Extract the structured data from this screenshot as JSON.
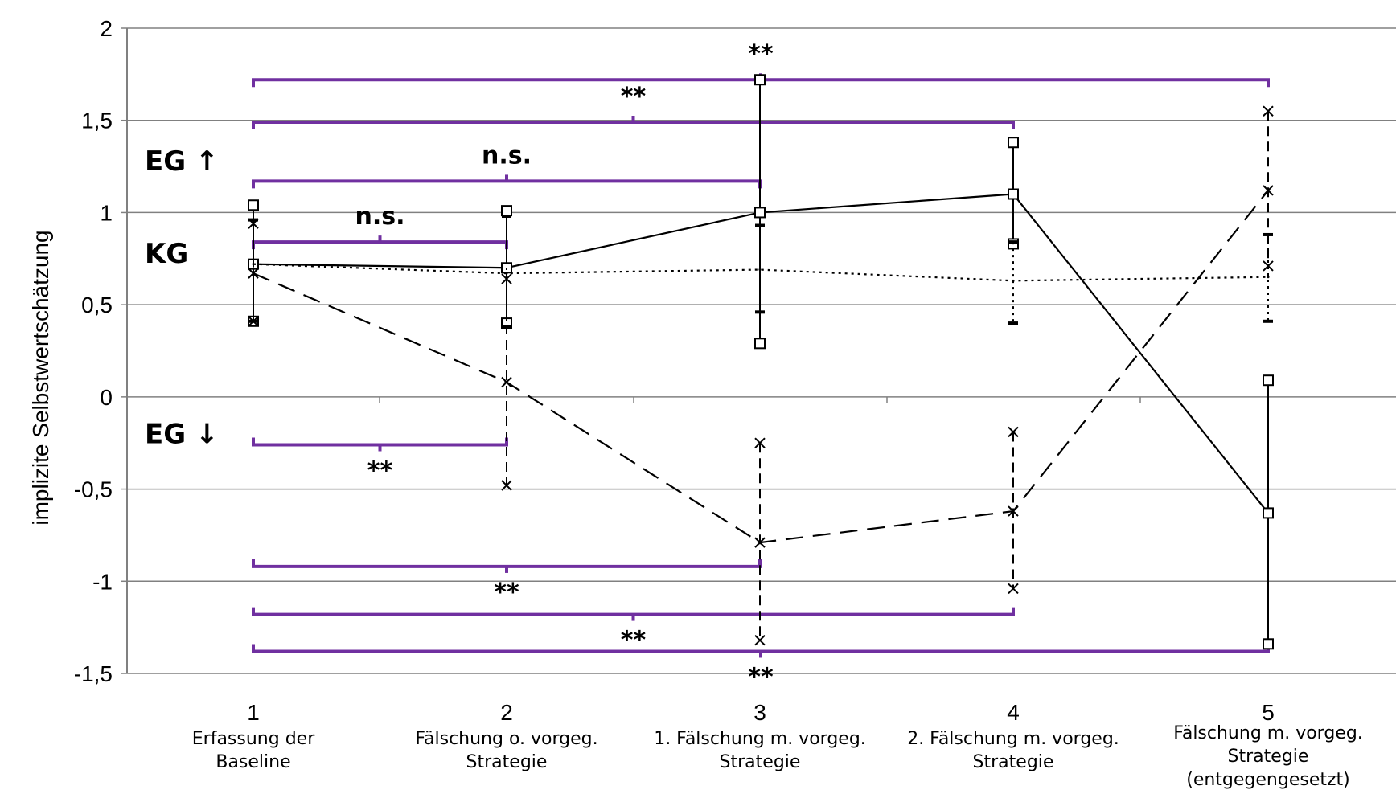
{
  "chart_data": {
    "type": "line",
    "ylabel": "implizite Selbstwertschätzung",
    "xlabel": "",
    "ylim": [
      -1.5,
      2
    ],
    "yticks": [
      2,
      1.5,
      1,
      0.5,
      0,
      -0.5,
      -1,
      -1.5
    ],
    "ytick_labels": [
      "2",
      "1,5",
      "1",
      "0,5",
      "0",
      "-0,5",
      "-1",
      "-1,5"
    ],
    "grid": true,
    "x": [
      1,
      2,
      3,
      4,
      5
    ],
    "categories": [
      {
        "num": "1",
        "lines": [
          "Erfassung der",
          "Baseline"
        ]
      },
      {
        "num": "2",
        "lines": [
          "Fälschung o. vorgeg.",
          "Strategie"
        ]
      },
      {
        "num": "3",
        "lines": [
          "1. Fälschung m. vorgeg.",
          "Strategie"
        ]
      },
      {
        "num": "4",
        "lines": [
          "2. Fälschung m. vorgeg.",
          "Strategie"
        ]
      },
      {
        "num": "5",
        "lines": [
          "Fälschung m. vorgeg.",
          "Strategie",
          "(entgegengesetzt)"
        ]
      }
    ],
    "series": [
      {
        "name": "EG ↑",
        "marker": "square",
        "line": "solid",
        "values": [
          0.72,
          0.7,
          1.0,
          1.1,
          -0.63
        ],
        "upper": [
          1.04,
          1.01,
          1.72,
          1.38,
          0.09
        ],
        "lower": [
          0.41,
          0.4,
          0.29,
          0.83,
          -1.34
        ]
      },
      {
        "name": "KG",
        "marker": "none",
        "line": "dotted",
        "values": [
          0.72,
          0.67,
          0.69,
          0.63,
          0.65
        ],
        "upper": [
          0.96,
          0.98,
          0.93,
          0.84,
          0.88
        ],
        "lower": [
          0.41,
          0.38,
          0.46,
          0.4,
          0.41
        ]
      },
      {
        "name": "EG ↓",
        "marker": "x",
        "line": "dashed",
        "values": [
          0.67,
          0.08,
          -0.79,
          -0.62,
          1.12
        ],
        "upper": [
          0.94,
          0.64,
          -0.25,
          -0.19,
          1.55
        ],
        "lower": [
          0.41,
          -0.48,
          -1.32,
          -1.04,
          0.71
        ]
      }
    ],
    "annotations": [
      {
        "label": "n.s.",
        "x1": 1,
        "x2": 2,
        "y": 0.84,
        "label_pos": "above"
      },
      {
        "label": "n.s.",
        "x1": 1,
        "x2": 3,
        "y": 1.17,
        "label_pos": "above"
      },
      {
        "label": "**",
        "x1": 1,
        "x2": 4,
        "y": 1.49,
        "label_pos": "above"
      },
      {
        "label": "**",
        "x1": 1,
        "x2": 5,
        "y": 1.72,
        "label_pos": "above"
      },
      {
        "label": "**",
        "x1": 1,
        "x2": 2,
        "y": -0.26,
        "label_pos": "below"
      },
      {
        "label": "**",
        "x1": 1,
        "x2": 3,
        "y": -0.92,
        "label_pos": "below"
      },
      {
        "label": "**",
        "x1": 1,
        "x2": 4,
        "y": -1.18,
        "label_pos": "below"
      },
      {
        "label": "**",
        "x1": 1,
        "x2": 5,
        "y": -1.38,
        "label_pos": "below"
      }
    ],
    "group_labels": [
      {
        "text": "EG ↑",
        "y": 1.28
      },
      {
        "text": "KG",
        "y": 0.78
      },
      {
        "text": "EG ↓",
        "y": -0.2
      }
    ],
    "colors": {
      "bracket": "#7030a0",
      "axis": "#808080",
      "grid": "#808080",
      "data": "#000000"
    }
  }
}
